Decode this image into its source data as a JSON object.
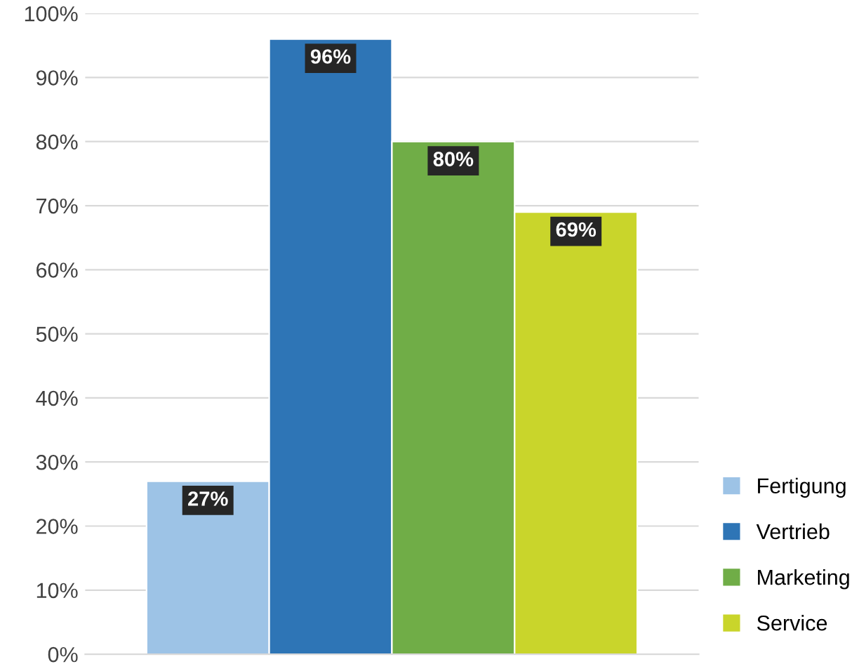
{
  "chart_data": {
    "type": "bar",
    "categories": [
      null
    ],
    "series": [
      {
        "name": "Fertigung",
        "color": "#9dc3e6",
        "values": [
          27
        ],
        "value_labels": [
          "27%"
        ]
      },
      {
        "name": "Vertrieb",
        "color": "#2e75b6",
        "values": [
          96
        ],
        "value_labels": [
          "96%"
        ]
      },
      {
        "name": "Marketing",
        "color": "#70ad47",
        "values": [
          80
        ],
        "value_labels": [
          "80%"
        ]
      },
      {
        "name": "Service",
        "color": "#c9d52b",
        "values": [
          69
        ],
        "value_labels": [
          "69%"
        ]
      }
    ],
    "ylim": [
      0,
      100
    ],
    "yticks": [
      {
        "value": 0,
        "label": "0%"
      },
      {
        "value": 10,
        "label": "10%"
      },
      {
        "value": 20,
        "label": "20%"
      },
      {
        "value": 30,
        "label": "30%"
      },
      {
        "value": 40,
        "label": "40%"
      },
      {
        "value": 50,
        "label": "50%"
      },
      {
        "value": 60,
        "label": "60%"
      },
      {
        "value": 70,
        "label": "70%"
      },
      {
        "value": 80,
        "label": "80%"
      },
      {
        "value": 90,
        "label": "90%"
      },
      {
        "value": 100,
        "label": "100%"
      }
    ],
    "grid": "y",
    "legend": "bottom right"
  }
}
